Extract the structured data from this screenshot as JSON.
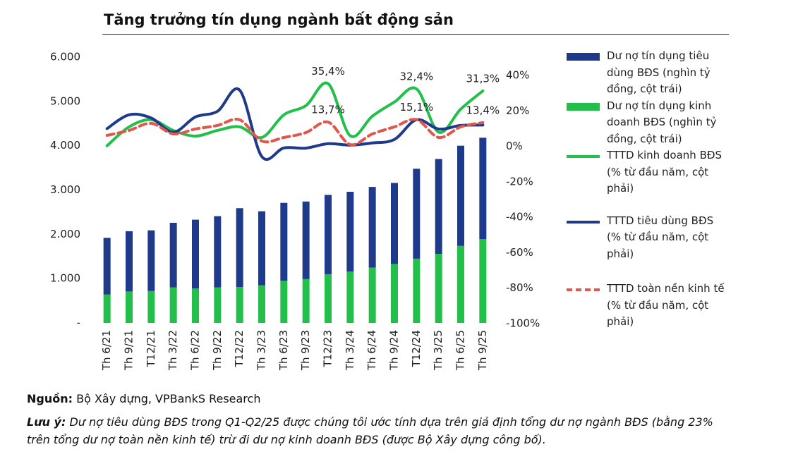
{
  "chart_data": {
    "type": "bar",
    "title": "Tăng trưởng tín dụng ngành bất động sản",
    "categories": [
      "Th 6/21",
      "Th 9/21",
      "T12/21",
      "Th 3/22",
      "Th 6/22",
      "Th 9/22",
      "T12/22",
      "Th 3/23",
      "Th 6/23",
      "Th 9/23",
      "T12/23",
      "Th 3/24",
      "Th 6/24",
      "Th 9/24",
      "T12/24",
      "Th 3/25",
      "Th 6/25",
      "Th 9/25"
    ],
    "series": [
      {
        "name": "Dư nợ tín dụng tiêu dùng BĐS (nghìn tỷ đồng, cột trái)",
        "type": "bar",
        "color": "#1f3a8a",
        "values": [
          1280,
          1360,
          1370,
          1460,
          1550,
          1610,
          1780,
          1670,
          1760,
          1750,
          1790,
          1800,
          1820,
          1830,
          2030,
          2140,
          2260,
          2290
        ]
      },
      {
        "name": "Dư nợ tín dụng kinh doanh BĐS (nghìn tỷ đồng, cột trái)",
        "type": "bar",
        "color": "#22c04b",
        "values": [
          640,
          710,
          720,
          800,
          780,
          800,
          810,
          850,
          950,
          990,
          1100,
          1160,
          1250,
          1330,
          1450,
          1560,
          1740,
          1890
        ]
      },
      {
        "name": "TTTD kinh doanh BĐS (% từ đầu năm, cột phải)",
        "type": "line",
        "axis": "y2",
        "color": "#22c04b",
        "values": [
          0.3,
          11,
          15,
          9,
          5.8,
          9,
          11,
          5,
          17.8,
          23,
          35.4,
          6,
          17,
          25,
          32.4,
          8,
          21,
          31.3
        ],
        "value_labels": [
          null,
          null,
          null,
          null,
          null,
          null,
          null,
          null,
          null,
          null,
          "35,4%",
          null,
          null,
          null,
          "32,4%",
          null,
          null,
          "31,3%"
        ]
      },
      {
        "name": "TTTD tiêu dùng BĐS (% từ đầu năm, cột phải)",
        "type": "line",
        "axis": "y2",
        "color": "#1f3a8a",
        "values": [
          10,
          17.8,
          16,
          8,
          16.6,
          19.8,
          31.7,
          -5.7,
          -0.9,
          -1,
          1.5,
          0.7,
          1.9,
          3.9,
          15,
          9.8,
          11.8,
          12
        ]
      },
      {
        "name": "TTTD toàn nền kinh tế (% từ đầu năm, cột phải)",
        "type": "line",
        "axis": "y2",
        "color": "#e0584c",
        "dashed": true,
        "values": [
          6.2,
          9,
          13,
          7,
          9.8,
          11.8,
          15,
          3,
          5,
          7.8,
          13.7,
          1,
          7,
          11,
          15.1,
          5,
          11,
          13.4
        ],
        "value_labels": [
          null,
          null,
          null,
          null,
          null,
          null,
          null,
          null,
          null,
          null,
          "13,7%",
          null,
          null,
          null,
          "15,1%",
          null,
          null,
          "13,4%"
        ]
      }
    ],
    "ylim": [
      0,
      6000
    ],
    "yticks": [
      {
        "value": 0,
        "label": "-"
      },
      {
        "value": 1000,
        "label": "1.000"
      },
      {
        "value": 2000,
        "label": "2.000"
      },
      {
        "value": 3000,
        "label": "3.000"
      },
      {
        "value": 4000,
        "label": "4.000"
      },
      {
        "value": 5000,
        "label": "5.000"
      },
      {
        "value": 6000,
        "label": "6.000"
      }
    ],
    "y2lim": [
      -100,
      40
    ],
    "y2ticks": [
      {
        "value": -100,
        "label": "-100%"
      },
      {
        "value": -80,
        "label": "-80%"
      },
      {
        "value": -60,
        "label": "-60%"
      },
      {
        "value": -40,
        "label": "-40%"
      },
      {
        "value": -20,
        "label": "-20%"
      },
      {
        "value": 0,
        "label": "0%"
      },
      {
        "value": 20,
        "label": "20%"
      },
      {
        "value": 40,
        "label": "40%"
      }
    ],
    "source_label": "Nguồn:",
    "source_text": "Bộ Xây dựng, VPBankS Research",
    "note_label": "Lưu ý:",
    "note_text": "Dư nợ tiêu dùng BĐS trong Q1-Q2/25 được chúng tôi ước tính dựa trên giả định tổng dư nợ ngành BĐS (bằng 23% trên tổng dư nợ toàn nền kinh tế) trừ đi dư nợ kinh doanh BĐS (được Bộ Xây dựng công bố)."
  }
}
